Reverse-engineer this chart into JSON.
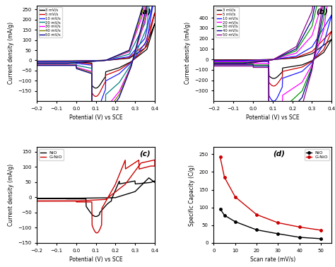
{
  "fig_width": 4.74,
  "fig_height": 3.78,
  "background": "#ffffff",
  "panel_a": {
    "label": "(a)",
    "xlabel": "Potential (V) vs SCE",
    "ylabel": "Current density (mA/g)",
    "xlim": [
      -0.2,
      0.4
    ],
    "ylim": [
      -200,
      270
    ],
    "yticks": [
      -150,
      -100,
      -50,
      0,
      50,
      100,
      150,
      200,
      250
    ],
    "xticks": [
      -0.2,
      -0.1,
      0.0,
      0.1,
      0.2,
      0.3,
      0.4
    ],
    "scan_rates": [
      "3 mV/s",
      "5 mV/s",
      "10 mV/s",
      "20 mV/s",
      "30 mV/s",
      "40 mV/s",
      "50 mV/s"
    ],
    "colors": [
      "#000000",
      "#cc0000",
      "#1a1aff",
      "#008080",
      "#ff00ff",
      "#808000",
      "#00008b"
    ],
    "scales": [
      1.0,
      1.3,
      1.8,
      3.0,
      4.2,
      4.6,
      5.0
    ]
  },
  "panel_b": {
    "label": "(b)",
    "xlabel": "Potential (V) vs SCE",
    "ylabel": "Current density (mA/g)",
    "xlim": [
      -0.2,
      0.4
    ],
    "ylim": [
      -400,
      520
    ],
    "yticks": [
      -300,
      -200,
      -100,
      0,
      100,
      200,
      300,
      400
    ],
    "xticks": [
      -0.2,
      -0.1,
      0.0,
      0.1,
      0.2,
      0.3,
      0.4
    ],
    "scan_rates": [
      "3 mV/s",
      "5 mV/s",
      "10 mV/s",
      "20 mV/s",
      "30 mV/s",
      "40 mV/s",
      "50 mV/s"
    ],
    "colors": [
      "#000000",
      "#cc0000",
      "#1a1aff",
      "#ff00ff",
      "#009900",
      "#00008b",
      "#8b008b"
    ],
    "scales": [
      1.0,
      1.4,
      2.2,
      4.2,
      5.8,
      7.0,
      8.5
    ]
  },
  "panel_c": {
    "label": "(c)",
    "xlabel": "Potential (V) vs SCE",
    "ylabel": "Current density (mA/g)",
    "xlim": [
      -0.2,
      0.4
    ],
    "ylim": [
      -150,
      165
    ],
    "yticks": [
      -150,
      -100,
      -50,
      0,
      50,
      100,
      150
    ],
    "xticks": [
      -0.2,
      -0.1,
      0.0,
      0.1,
      0.2,
      0.3,
      0.4
    ],
    "labels": [
      "NiO",
      "G-NiO"
    ],
    "colors": [
      "#000000",
      "#cc0000"
    ]
  },
  "panel_d": {
    "label": "(d)",
    "xlabel": "Scan rate (mV/s)",
    "ylabel": "Specific Capacity (C/g)",
    "xlim": [
      0,
      55
    ],
    "ylim": [
      0,
      270
    ],
    "yticks": [
      0,
      50,
      100,
      150,
      200,
      250
    ],
    "xticks": [
      0,
      10,
      20,
      30,
      40,
      50
    ],
    "labels": [
      "NiO",
      "G-NiO"
    ],
    "colors": [
      "#000000",
      "#cc0000"
    ],
    "NiO_x": [
      3,
      5,
      10,
      20,
      30,
      40,
      50
    ],
    "NiO_y": [
      96,
      78,
      60,
      37,
      26,
      16,
      12
    ],
    "GNiO_x": [
      3,
      5,
      10,
      20,
      30,
      40,
      50
    ],
    "GNiO_y": [
      242,
      185,
      130,
      80,
      57,
      45,
      36
    ]
  }
}
